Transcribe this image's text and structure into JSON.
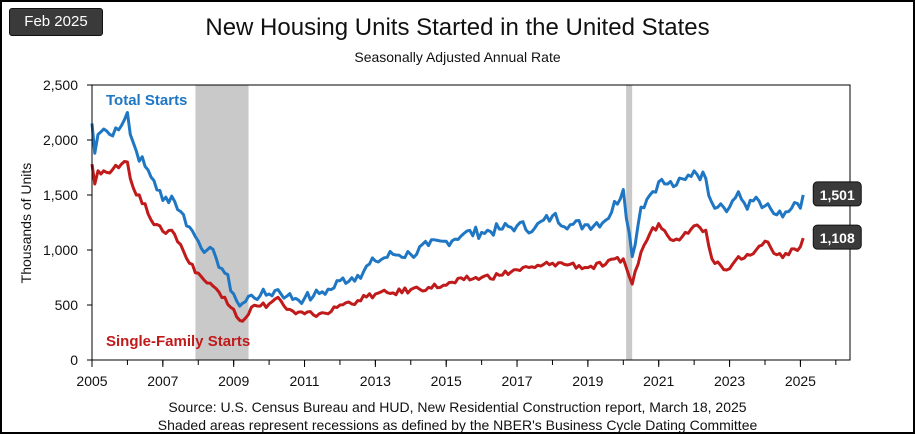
{
  "badge": "Feb 2025",
  "chart_data": {
    "type": "line",
    "title": "New Housing Units Started in the United States",
    "subtitle": "Seasonally Adjusted  Annual  Rate",
    "ylabel": "Thousands of Units",
    "xlabel": "",
    "xlim": [
      2005,
      2026.4
    ],
    "ylim": [
      0,
      2500
    ],
    "xticks": [
      "2005",
      "2007",
      "2009",
      "2011",
      "2013",
      "2015",
      "2017",
      "2019",
      "2021",
      "2023",
      "2025"
    ],
    "yticks": [
      "0",
      "500",
      "1,000",
      "1,500",
      "2,000",
      "2,500"
    ],
    "grid": false,
    "recessions": [
      [
        2007.92,
        2009.42
      ],
      [
        2020.08,
        2020.25
      ]
    ],
    "series": [
      {
        "name": "Total Starts",
        "color": "#1f77c4",
        "end_label": "1,501",
        "x": [
          2005.0,
          2005.08,
          2005.17,
          2005.33,
          2005.5,
          2005.67,
          2005.83,
          2006.0,
          2006.08,
          2006.25,
          2006.5,
          2006.75,
          2007.0,
          2007.25,
          2007.5,
          2007.75,
          2008.0,
          2008.25,
          2008.5,
          2008.75,
          2009.0,
          2009.17,
          2009.33,
          2009.5,
          2009.75,
          2010.0,
          2010.25,
          2010.5,
          2010.75,
          2011.0,
          2011.25,
          2011.5,
          2011.75,
          2012.0,
          2012.5,
          2013.0,
          2013.5,
          2014.0,
          2014.5,
          2015.0,
          2015.5,
          2016.0,
          2016.5,
          2017.0,
          2017.5,
          2018.0,
          2018.5,
          2019.0,
          2019.5,
          2020.0,
          2020.25,
          2020.5,
          2020.75,
          2021.0,
          2021.25,
          2021.5,
          2021.75,
          2022.0,
          2022.33,
          2022.5,
          2022.75,
          2023.0,
          2023.25,
          2023.5,
          2023.75,
          2024.0,
          2024.25,
          2024.5,
          2024.75,
          2025.0,
          2025.08
        ],
        "y": [
          2150,
          1880,
          2050,
          2100,
          2050,
          2110,
          2130,
          2250,
          2050,
          1900,
          1760,
          1630,
          1450,
          1490,
          1350,
          1210,
          1080,
          1000,
          930,
          790,
          600,
          490,
          530,
          590,
          585,
          600,
          640,
          580,
          560,
          560,
          580,
          620,
          640,
          720,
          770,
          900,
          960,
          960,
          1040,
          1080,
          1150,
          1160,
          1190,
          1220,
          1200,
          1310,
          1230,
          1230,
          1270,
          1550,
          940,
          1390,
          1500,
          1620,
          1600,
          1590,
          1640,
          1720,
          1650,
          1430,
          1420,
          1390,
          1530,
          1370,
          1480,
          1400,
          1330,
          1300,
          1380,
          1380,
          1501
        ]
      },
      {
        "name": "Single-Family Starts",
        "color": "#c01a1a",
        "end_label": "1,108",
        "x": [
          2005.0,
          2005.08,
          2005.17,
          2005.33,
          2005.5,
          2005.67,
          2005.83,
          2006.0,
          2006.08,
          2006.25,
          2006.5,
          2006.75,
          2007.0,
          2007.25,
          2007.5,
          2007.75,
          2008.0,
          2008.25,
          2008.5,
          2008.75,
          2009.0,
          2009.17,
          2009.33,
          2009.5,
          2009.75,
          2010.0,
          2010.25,
          2010.5,
          2010.75,
          2011.0,
          2011.25,
          2011.5,
          2011.75,
          2012.0,
          2012.5,
          2013.0,
          2013.5,
          2014.0,
          2014.5,
          2015.0,
          2015.5,
          2016.0,
          2016.5,
          2017.0,
          2017.5,
          2018.0,
          2018.5,
          2019.0,
          2019.5,
          2020.0,
          2020.25,
          2020.5,
          2020.75,
          2021.0,
          2021.25,
          2021.5,
          2021.75,
          2022.0,
          2022.33,
          2022.5,
          2022.75,
          2023.0,
          2023.25,
          2023.5,
          2023.75,
          2024.0,
          2024.25,
          2024.5,
          2024.75,
          2025.0,
          2025.08
        ],
        "y": [
          1780,
          1600,
          1720,
          1720,
          1700,
          1770,
          1780,
          1800,
          1650,
          1500,
          1420,
          1230,
          1170,
          1180,
          1050,
          880,
          790,
          700,
          650,
          570,
          460,
          360,
          380,
          480,
          490,
          510,
          570,
          460,
          420,
          420,
          410,
          430,
          440,
          500,
          540,
          600,
          610,
          640,
          660,
          680,
          730,
          750,
          770,
          820,
          840,
          880,
          870,
          840,
          870,
          920,
          690,
          980,
          1150,
          1240,
          1130,
          1100,
          1160,
          1220,
          1180,
          920,
          860,
          830,
          940,
          960,
          1000,
          1080,
          970,
          930,
          1010,
          1030,
          1108
        ]
      }
    ]
  },
  "source_line": "Source:  U.S. Census Bureau and HUD, New Residential Construction report, March 18, 2025",
  "note_line": "Shaded areas represent recessions as defined by the NBER's Business Cycle Dating Committee"
}
